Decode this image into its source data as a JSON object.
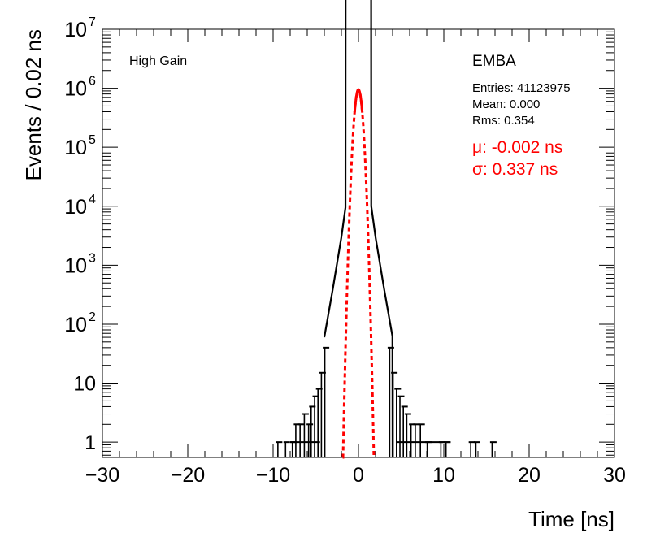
{
  "chart_data": {
    "type": "histogram",
    "xlabel": "Time [ns]",
    "ylabel": "Events / 0.02 ns",
    "xlim": [
      -30,
      30
    ],
    "ylim": [
      0.55,
      10000000
    ],
    "yscale": "log",
    "grid": false,
    "legend": "none",
    "x_ticks": [
      {
        "value": -30,
        "label": "−30"
      },
      {
        "value": -20,
        "label": "−20"
      },
      {
        "value": -10,
        "label": "−10"
      },
      {
        "value": 0,
        "label": "0"
      },
      {
        "value": 10,
        "label": "10"
      },
      {
        "value": 20,
        "label": "20"
      },
      {
        "value": 30,
        "label": "30"
      }
    ],
    "y_ticks": [
      {
        "value": 1,
        "label": "1"
      },
      {
        "value": 10,
        "label": "10"
      },
      {
        "value": 100,
        "label": "10",
        "exp": "2"
      },
      {
        "value": 1000,
        "label": "10",
        "exp": "3"
      },
      {
        "value": 10000,
        "label": "10",
        "exp": "4"
      },
      {
        "value": 100000,
        "label": "10",
        "exp": "5"
      },
      {
        "value": 1000000,
        "label": "10",
        "exp": "6"
      },
      {
        "value": 10000000,
        "label": "10",
        "exp": "7"
      }
    ],
    "annotations": {
      "gain": "High Gain",
      "partition": "EMBA",
      "entries": "Entries: 41123975",
      "mean": "Mean: 0.000",
      "rms": "Rms: 0.354",
      "mu": "μ: -0.002 ns",
      "sigma": "σ: 0.337 ns"
    },
    "series": [
      {
        "type": "histogram",
        "color": "#000000",
        "core_gaussian": {
          "peak": 950000,
          "mean": 0.0,
          "sigma": 0.34
        },
        "tails": [
          {
            "x": -4.0,
            "y": 60
          },
          {
            "x": -3.0,
            "y": 400
          },
          {
            "x": -2.0,
            "y": 3000
          },
          {
            "x": -1.5,
            "y": 10000
          },
          {
            "x": 1.5,
            "y": 10000
          },
          {
            "x": 2.0,
            "y": 3000
          },
          {
            "x": 3.0,
            "y": 400
          },
          {
            "x": 4.0,
            "y": 60
          }
        ],
        "tail_scatter": [
          {
            "x": -9.3,
            "y": 1
          },
          {
            "x": -8.4,
            "y": 1
          },
          {
            "x": -7.6,
            "y": 1
          },
          {
            "x": -7.2,
            "y": 2
          },
          {
            "x": -6.7,
            "y": 2
          },
          {
            "x": -6.2,
            "y": 3
          },
          {
            "x": -5.7,
            "y": 2
          },
          {
            "x": -5.4,
            "y": 4
          },
          {
            "x": -5.0,
            "y": 6
          },
          {
            "x": -4.6,
            "y": 8
          },
          {
            "x": -4.2,
            "y": 15
          },
          {
            "x": -3.8,
            "y": 40
          },
          {
            "x": 3.8,
            "y": 40
          },
          {
            "x": 4.2,
            "y": 15
          },
          {
            "x": 4.6,
            "y": 8
          },
          {
            "x": 5.0,
            "y": 6
          },
          {
            "x": 5.4,
            "y": 4
          },
          {
            "x": 5.8,
            "y": 3
          },
          {
            "x": 6.3,
            "y": 2
          },
          {
            "x": 6.8,
            "y": 2
          },
          {
            "x": 7.4,
            "y": 2
          },
          {
            "x": 8.2,
            "y": 1
          },
          {
            "x": 9.8,
            "y": 1
          },
          {
            "x": 10.4,
            "y": 1
          },
          {
            "x": 13.3,
            "y": 1
          },
          {
            "x": 13.9,
            "y": 1
          },
          {
            "x": 15.8,
            "y": 1
          }
        ]
      },
      {
        "type": "line",
        "name": "Gaussian fit",
        "color": "#ff0000",
        "mean": -0.002,
        "sigma": 0.337,
        "peak": 950000,
        "solid_range": [
          -0.45,
          0.45
        ],
        "dashed_range": [
          -1.85,
          1.85
        ]
      }
    ]
  }
}
